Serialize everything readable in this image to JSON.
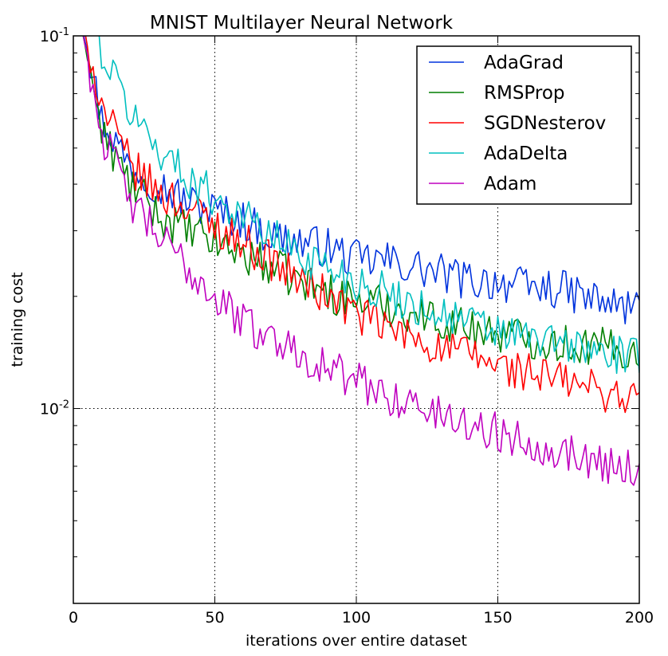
{
  "chart_data": {
    "type": "line",
    "title": "MNIST Multilayer Neural Network",
    "xlabel": "iterations over entire dataset",
    "ylabel": "training cost",
    "xlim": [
      0,
      200
    ],
    "ylim": [
      0.003,
      0.1
    ],
    "yscale": "log",
    "grid": true,
    "legend_position": "top-right",
    "x_ticks": [
      {
        "value": 0,
        "label": "0"
      },
      {
        "value": 50,
        "label": "50"
      },
      {
        "value": 100,
        "label": "100"
      },
      {
        "value": 150,
        "label": "150"
      },
      {
        "value": 200,
        "label": "200"
      }
    ],
    "y_ticks": [
      {
        "value": 0.01,
        "base": "10",
        "exp": "-2"
      },
      {
        "value": 0.1,
        "base": "10",
        "exp": "-1"
      }
    ],
    "x": [
      0,
      10,
      20,
      30,
      40,
      50,
      60,
      70,
      80,
      90,
      100,
      110,
      120,
      130,
      140,
      150,
      160,
      170,
      180,
      190,
      200
    ],
    "series": [
      {
        "name": "AdaGrad",
        "color": "#0033dd",
        "values": [
          0.14,
          0.06,
          0.045,
          0.04,
          0.036,
          0.034,
          0.032,
          0.029,
          0.028,
          0.027,
          0.025,
          0.025,
          0.024,
          0.023,
          0.022,
          0.022,
          0.021,
          0.021,
          0.02,
          0.019,
          0.0185
        ]
      },
      {
        "name": "RMSProp",
        "color": "#007f00",
        "values": [
          0.14,
          0.055,
          0.04,
          0.033,
          0.03,
          0.028,
          0.026,
          0.024,
          0.022,
          0.0205,
          0.0195,
          0.019,
          0.018,
          0.0172,
          0.0165,
          0.016,
          0.0155,
          0.015,
          0.0148,
          0.0145,
          0.014
        ]
      },
      {
        "name": "SGDNesterov",
        "color": "#ff0000",
        "values": [
          0.14,
          0.065,
          0.045,
          0.038,
          0.035,
          0.031,
          0.028,
          0.025,
          0.022,
          0.02,
          0.018,
          0.0165,
          0.0155,
          0.0145,
          0.014,
          0.013,
          0.0125,
          0.012,
          0.0115,
          0.011,
          0.0105
        ]
      },
      {
        "name": "AdaDelta",
        "color": "#00bfbf",
        "values": [
          0.2,
          0.09,
          0.063,
          0.05,
          0.042,
          0.037,
          0.033,
          0.029,
          0.026,
          0.024,
          0.022,
          0.0205,
          0.019,
          0.018,
          0.017,
          0.016,
          0.0155,
          0.015,
          0.0145,
          0.014,
          0.0135
        ]
      },
      {
        "name": "Adam",
        "color": "#bf00bf",
        "values": [
          0.14,
          0.055,
          0.036,
          0.029,
          0.024,
          0.02,
          0.017,
          0.0155,
          0.0142,
          0.0128,
          0.0118,
          0.011,
          0.0102,
          0.0096,
          0.0091,
          0.0086,
          0.0082,
          0.0078,
          0.0074,
          0.0071,
          0.0068
        ]
      }
    ]
  }
}
